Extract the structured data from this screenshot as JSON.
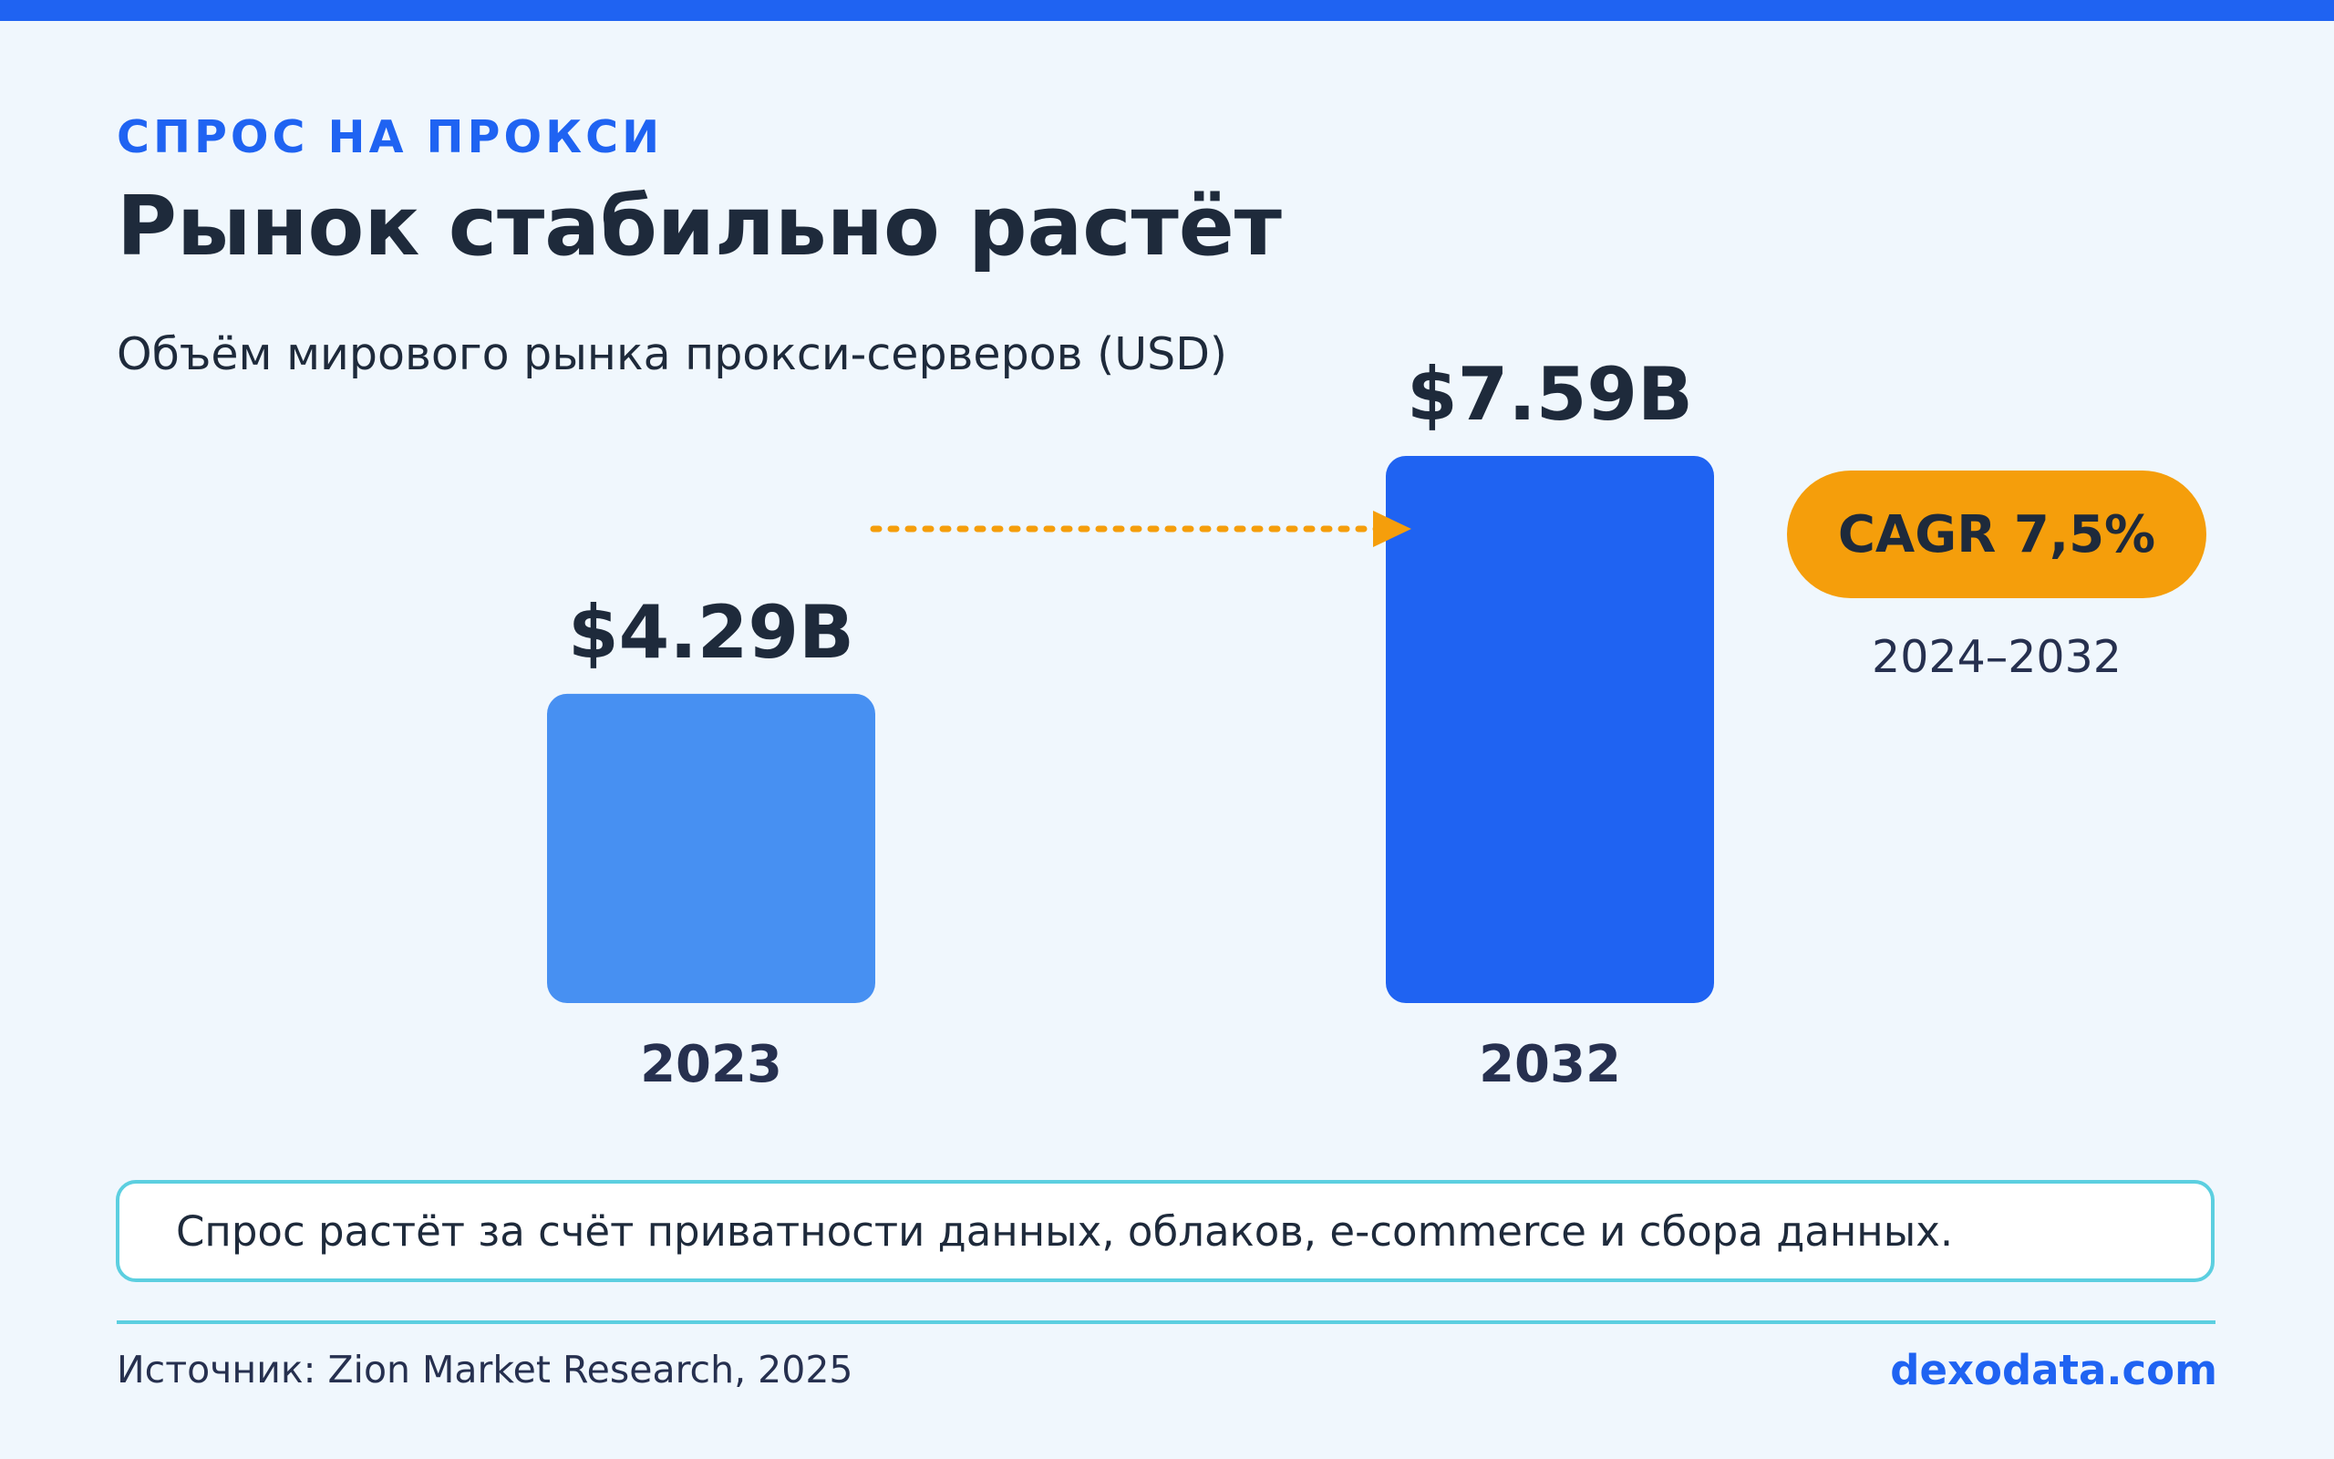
{
  "header": {
    "eyebrow": "СПРОС НА ПРОКСИ",
    "title": "Рынок стабильно растёт",
    "subtitle": "Объём мирового рынка прокси-серверов (USD)"
  },
  "chart_data": {
    "type": "bar",
    "title": "Рынок стабильно растёт",
    "subtitle": "Объём мирового рынка прокси-серверов (USD)",
    "categories": [
      "2023",
      "2032"
    ],
    "values": [
      4.29,
      7.59
    ],
    "value_labels": [
      "$4.29B",
      "$7.59B"
    ],
    "unit": "USD",
    "grid": false,
    "colors": [
      "#4790f2",
      "#1f63f2"
    ],
    "annotation": {
      "label": "CAGR 7,5%",
      "period": "2024–2032",
      "color": "#f59e0b",
      "arrow": "dotted, from first bar toward second bar"
    }
  },
  "note": "Спрос растёт за счёт приватности данных, облаков, e-commerce и сбора данных.",
  "footer": {
    "source": "Источник: Zion Market Research, 2025",
    "brand": "dexodata.com"
  },
  "colors": {
    "accent": "#1f63f2",
    "highlight": "#f59e0b",
    "text": "#1e2a3b",
    "border": "#5ccfe0",
    "background": "#f0f7fd"
  }
}
